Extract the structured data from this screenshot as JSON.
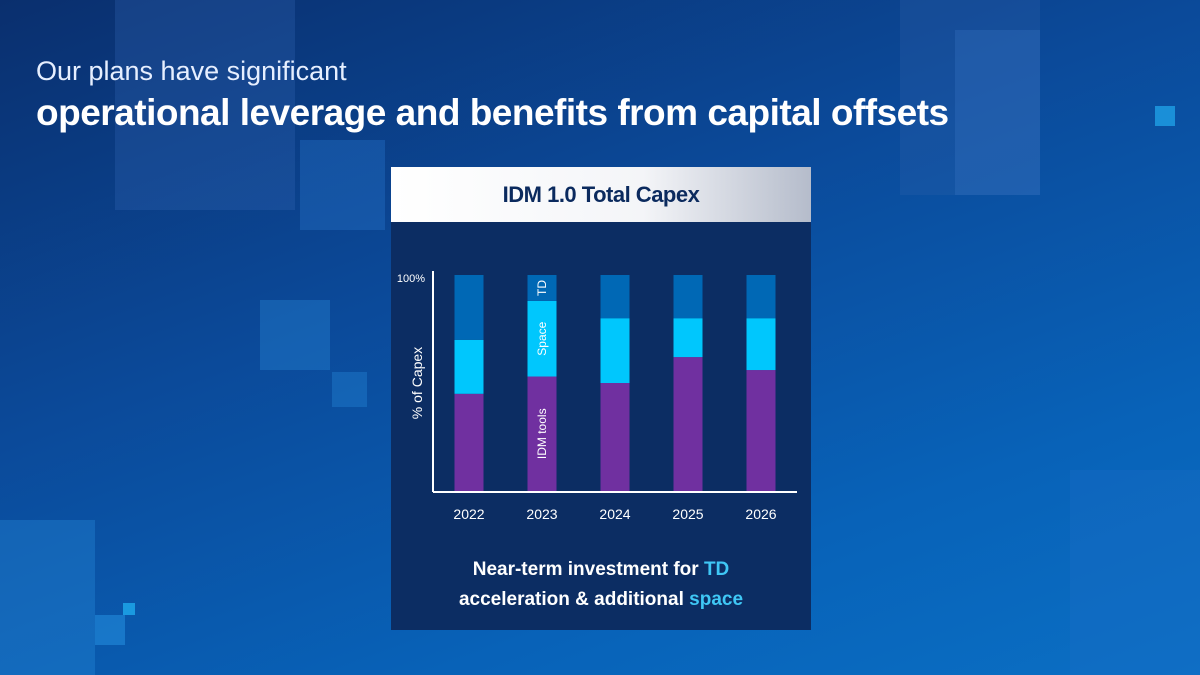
{
  "slide": {
    "title_line1": "Our plans have significant",
    "title_line2": "operational leverage and benefits from capital offsets"
  },
  "panel": {
    "header": "IDM 1.0 Total Capex",
    "footer": {
      "part1": "Near-term investment for ",
      "hl1": "TD",
      "part2": "acceleration & additional ",
      "hl2": "space"
    }
  },
  "chart_data": {
    "type": "bar",
    "stacked": true,
    "title": "IDM 1.0 Total Capex",
    "ylabel": "% of Capex",
    "xlabel": "",
    "ylim": [
      0,
      100
    ],
    "ytick_label": "100%",
    "categories": [
      "2022",
      "2023",
      "2024",
      "2025",
      "2026"
    ],
    "series": [
      {
        "name": "IDM tools",
        "color": "#7030a0",
        "values": [
          45,
          53,
          50,
          62,
          56
        ]
      },
      {
        "name": "Space",
        "color": "#00c7fd",
        "values": [
          25,
          35,
          30,
          18,
          24
        ]
      },
      {
        "name": "TD",
        "color": "#0068b5",
        "values": [
          30,
          12,
          20,
          20,
          20
        ]
      }
    ]
  }
}
